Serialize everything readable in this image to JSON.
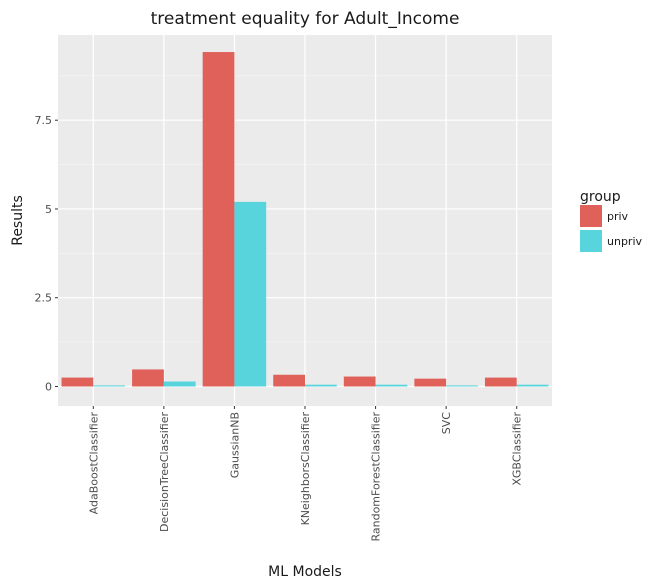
{
  "chart_data": {
    "type": "bar",
    "title": "treatment equality for Adult_Income",
    "xlabel": "ML Models",
    "ylabel": "Results",
    "categories": [
      "AdaBoostClassifier",
      "DecisionTreeClassifier",
      "GaussianNB",
      "KNeighborsClassifier",
      "RandomForestClassifier",
      "SVC",
      "XGBClassifier"
    ],
    "series": [
      {
        "name": "priv",
        "color": "#e0605a",
        "values": [
          0.25,
          0.48,
          9.42,
          0.33,
          0.28,
          0.22,
          0.25
        ]
      },
      {
        "name": "unpriv",
        "color": "#58d4dc",
        "values": [
          0.03,
          0.14,
          5.2,
          0.05,
          0.05,
          0.03,
          0.05
        ]
      }
    ],
    "ylim": [
      -0.55,
      9.9
    ],
    "yticks": [
      0,
      2.5,
      5,
      7.5
    ],
    "ytick_labels": [
      "0",
      "2.5",
      "5",
      "7.5"
    ],
    "grid": true,
    "panel_background": "#ebebeb",
    "legend": {
      "title": "group",
      "position": "right"
    }
  }
}
